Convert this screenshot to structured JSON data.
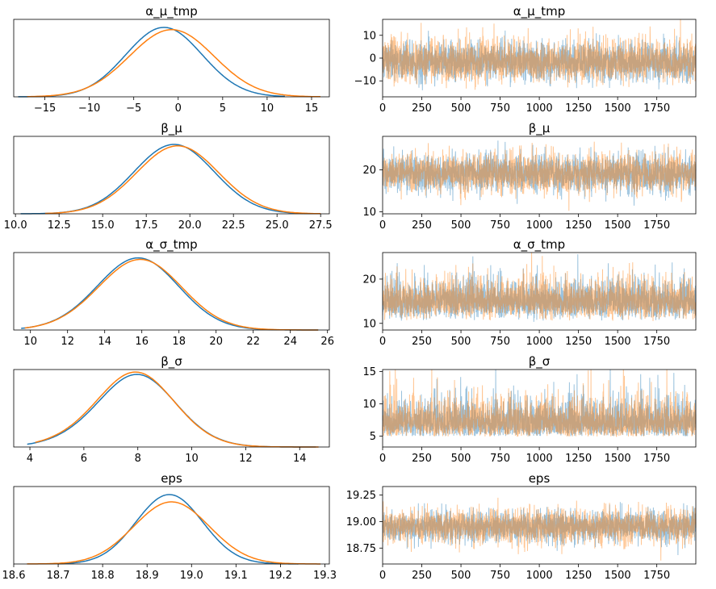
{
  "chart_data": [
    {
      "type": "line",
      "panel": "density",
      "title": "α_μ_tmp",
      "xlim": [
        -18.5,
        17
      ],
      "xticks": [
        -15,
        -10,
        -5,
        0,
        5,
        10,
        15
      ],
      "series": [
        {
          "color": "#1f77b4",
          "mean": -1.6,
          "sd": 4.3,
          "skew": 0.0,
          "peak": 0.95,
          "xmin": -18,
          "xmax": 12
        },
        {
          "color": "#ff7f0e",
          "mean": -1.4,
          "sd": 4.8,
          "skew": 0.3,
          "peak": 0.91,
          "xmin": -17,
          "xmax": 16
        }
      ]
    },
    {
      "type": "line",
      "panel": "trace",
      "title": "α_μ_tmp",
      "xlim": [
        0,
        1999
      ],
      "ylim": [
        -17,
        17
      ],
      "xticks": [
        0,
        250,
        500,
        750,
        1000,
        1250,
        1500,
        1750
      ],
      "yticks": [
        -10,
        0,
        10
      ],
      "series": [
        {
          "color": "#1f77b4",
          "mean": -1.6,
          "sd": 4.3,
          "skew": 0.0
        },
        {
          "color": "#ff7f0e",
          "mean": -1.4,
          "sd": 4.8,
          "skew": 0.3
        }
      ]
    },
    {
      "type": "line",
      "panel": "density",
      "title": "β_μ",
      "xlim": [
        9.9,
        28.0
      ],
      "xticks": [
        10.0,
        12.5,
        15.0,
        17.5,
        20.0,
        22.5,
        25.0,
        27.5
      ],
      "series": [
        {
          "color": "#1f77b4",
          "mean": 19.1,
          "sd": 2.3,
          "skew": 0.0,
          "peak": 0.95,
          "xmin": 10.3,
          "xmax": 27.2
        },
        {
          "color": "#ff7f0e",
          "mean": 19.3,
          "sd": 2.35,
          "skew": 0.0,
          "peak": 0.93,
          "xmin": 11.7,
          "xmax": 27.5
        }
      ]
    },
    {
      "type": "line",
      "panel": "trace",
      "title": "β_μ",
      "xlim": [
        0,
        1999
      ],
      "ylim": [
        9.5,
        28
      ],
      "xticks": [
        0,
        250,
        500,
        750,
        1000,
        1250,
        1500,
        1750
      ],
      "yticks": [
        10,
        20
      ],
      "series": [
        {
          "color": "#1f77b4",
          "mean": 19.1,
          "sd": 2.3,
          "skew": 0.0
        },
        {
          "color": "#ff7f0e",
          "mean": 19.3,
          "sd": 2.35,
          "skew": 0.0
        }
      ]
    },
    {
      "type": "line",
      "panel": "density",
      "title": "α_σ_tmp",
      "xlim": [
        9.1,
        26.1
      ],
      "xticks": [
        10,
        12,
        14,
        16,
        18,
        20,
        22,
        24,
        26
      ],
      "series": [
        {
          "color": "#1f77b4",
          "mean": 15.2,
          "sd": 2.3,
          "skew": 0.6,
          "peak": 0.95,
          "xmin": 9.5,
          "xmax": 25.5
        },
        {
          "color": "#ff7f0e",
          "mean": 15.3,
          "sd": 2.35,
          "skew": 0.6,
          "peak": 0.93,
          "xmin": 9.7,
          "xmax": 25.5
        }
      ]
    },
    {
      "type": "line",
      "panel": "trace",
      "title": "α_σ_tmp",
      "xlim": [
        0,
        1999
      ],
      "ylim": [
        8.5,
        26
      ],
      "xticks": [
        0,
        250,
        500,
        750,
        1000,
        1250,
        1500,
        1750
      ],
      "yticks": [
        10,
        20
      ],
      "series": [
        {
          "color": "#1f77b4",
          "mean": 15.2,
          "sd": 2.3,
          "skew": 0.6
        },
        {
          "color": "#ff7f0e",
          "mean": 15.3,
          "sd": 2.35,
          "skew": 0.6
        }
      ]
    },
    {
      "type": "line",
      "panel": "density",
      "title": "β_σ",
      "xlim": [
        3.4,
        15.1
      ],
      "xticks": [
        4,
        6,
        8,
        10,
        12,
        14
      ],
      "series": [
        {
          "color": "#1f77b4",
          "mean": 7.4,
          "sd": 1.6,
          "skew": 0.9,
          "peak": 0.92,
          "xmin": 3.9,
          "xmax": 14.6
        },
        {
          "color": "#ff7f0e",
          "mean": 7.35,
          "sd": 1.6,
          "skew": 0.9,
          "peak": 0.95,
          "xmin": 4.2,
          "xmax": 14.7
        }
      ]
    },
    {
      "type": "line",
      "panel": "trace",
      "title": "β_σ",
      "xlim": [
        0,
        1999
      ],
      "ylim": [
        3.3,
        15.3
      ],
      "xticks": [
        0,
        250,
        500,
        750,
        1000,
        1250,
        1500,
        1750
      ],
      "yticks": [
        5,
        10,
        15
      ],
      "series": [
        {
          "color": "#1f77b4",
          "mean": 7.4,
          "sd": 1.6,
          "skew": 0.9
        },
        {
          "color": "#ff7f0e",
          "mean": 7.35,
          "sd": 1.6,
          "skew": 0.9
        }
      ]
    },
    {
      "type": "line",
      "panel": "density",
      "title": "eps",
      "xlim": [
        18.6,
        19.31
      ],
      "xticks": [
        18.6,
        18.7,
        18.8,
        18.9,
        19.0,
        19.1,
        19.2,
        19.3
      ],
      "series": [
        {
          "color": "#1f77b4",
          "mean": 18.95,
          "sd": 0.075,
          "skew": 0.0,
          "peak": 0.95,
          "xmin": 18.7,
          "xmax": 19.24
        },
        {
          "color": "#ff7f0e",
          "mean": 18.955,
          "sd": 0.085,
          "skew": 0.0,
          "peak": 0.85,
          "xmin": 18.63,
          "xmax": 19.29
        }
      ]
    },
    {
      "type": "line",
      "panel": "trace",
      "title": "eps",
      "xlim": [
        0,
        1999
      ],
      "ylim": [
        18.6,
        19.33
      ],
      "xticks": [
        0,
        250,
        500,
        750,
        1000,
        1250,
        1500,
        1750
      ],
      "yticks": [
        18.75,
        19.0,
        19.25
      ],
      "series": [
        {
          "color": "#1f77b4",
          "mean": 18.95,
          "sd": 0.075,
          "skew": 0.0
        },
        {
          "color": "#ff7f0e",
          "mean": 18.955,
          "sd": 0.085,
          "skew": 0.0
        }
      ]
    }
  ]
}
